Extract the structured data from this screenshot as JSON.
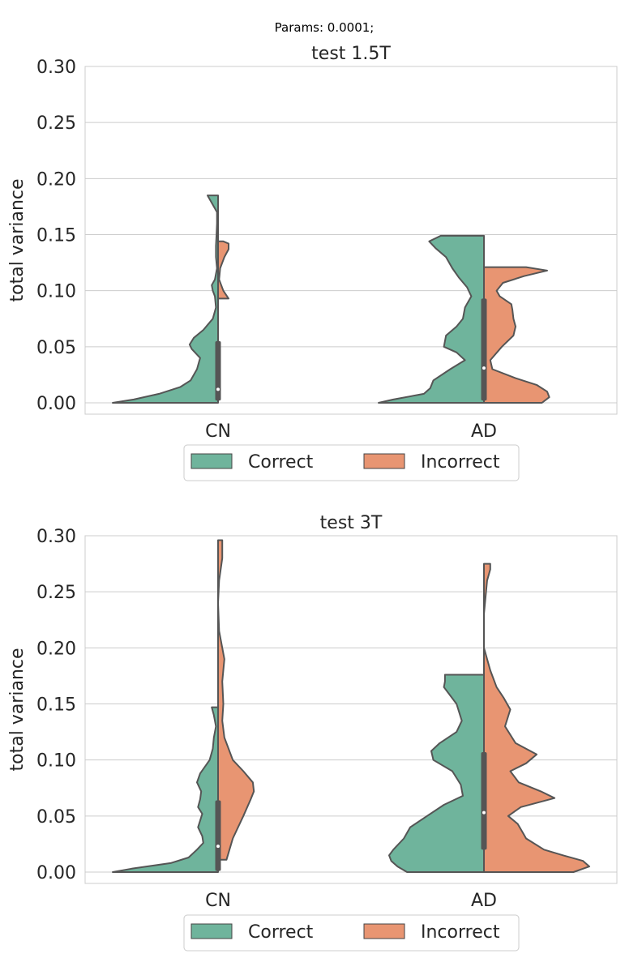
{
  "figure": {
    "suptitle": "Params: 0.0001;"
  },
  "colors": {
    "correct": "#6fb49c",
    "incorrect": "#e89572",
    "edge": "#555555",
    "grid": "#cccccc",
    "frame": "#cccccc"
  },
  "legend": {
    "items": [
      {
        "label": "Correct",
        "color": "#6fb49c"
      },
      {
        "label": "Incorrect",
        "color": "#e89572"
      }
    ]
  },
  "chart_data": [
    {
      "type": "violin",
      "title": "test 1.5T",
      "xlabel": "",
      "ylabel": "total variance",
      "categories": [
        "CN",
        "AD"
      ],
      "ylim": [
        -0.01,
        0.3
      ],
      "yticks": [
        "0.00",
        "0.05",
        "0.10",
        "0.15",
        "0.20",
        "0.25",
        "0.30"
      ],
      "grid": true,
      "legend_position": "bottom-center",
      "split": true,
      "groups": [
        {
          "category": "CN",
          "median": 0.012,
          "iqr": [
            0.002,
            0.055
          ],
          "correct": {
            "min": 0.0,
            "max": 0.185,
            "profile": [
              [
                0.0,
                1.0
              ],
              [
                0.003,
                0.8
              ],
              [
                0.008,
                0.56
              ],
              [
                0.014,
                0.36
              ],
              [
                0.02,
                0.26
              ],
              [
                0.03,
                0.2
              ],
              [
                0.04,
                0.17
              ],
              [
                0.048,
                0.25
              ],
              [
                0.052,
                0.27
              ],
              [
                0.058,
                0.23
              ],
              [
                0.065,
                0.14
              ],
              [
                0.075,
                0.05
              ],
              [
                0.085,
                0.02
              ],
              [
                0.095,
                0.03
              ],
              [
                0.1,
                0.05
              ],
              [
                0.105,
                0.06
              ],
              [
                0.11,
                0.03
              ],
              [
                0.12,
                0.01
              ],
              [
                0.13,
                0.02
              ],
              [
                0.14,
                0.02
              ],
              [
                0.15,
                0.015
              ],
              [
                0.16,
                0.01
              ],
              [
                0.17,
                0.01
              ],
              [
                0.185,
                0.1
              ]
            ]
          },
          "incorrect": {
            "min": 0.093,
            "max": 0.144,
            "profile": [
              [
                0.093,
                0.1
              ],
              [
                0.1,
                0.05
              ],
              [
                0.11,
                0.01
              ],
              [
                0.12,
                0.02
              ],
              [
                0.13,
                0.06
              ],
              [
                0.137,
                0.1
              ],
              [
                0.142,
                0.1
              ],
              [
                0.144,
                0.05
              ]
            ]
          }
        },
        {
          "category": "AD",
          "median": 0.031,
          "iqr": [
            0.002,
            0.093
          ],
          "correct": {
            "min": 0.0,
            "max": 0.149,
            "profile": [
              [
                0.0,
                1.0
              ],
              [
                0.003,
                0.86
              ],
              [
                0.008,
                0.57
              ],
              [
                0.013,
                0.51
              ],
              [
                0.02,
                0.48
              ],
              [
                0.03,
                0.32
              ],
              [
                0.038,
                0.18
              ],
              [
                0.045,
                0.26
              ],
              [
                0.05,
                0.38
              ],
              [
                0.06,
                0.36
              ],
              [
                0.068,
                0.26
              ],
              [
                0.075,
                0.2
              ],
              [
                0.085,
                0.18
              ],
              [
                0.095,
                0.12
              ],
              [
                0.103,
                0.16
              ],
              [
                0.112,
                0.24
              ],
              [
                0.12,
                0.3
              ],
              [
                0.13,
                0.36
              ],
              [
                0.138,
                0.46
              ],
              [
                0.144,
                0.52
              ],
              [
                0.149,
                0.41
              ]
            ]
          },
          "incorrect": {
            "min": 0.0,
            "max": 0.121,
            "profile": [
              [
                0.0,
                0.55
              ],
              [
                0.005,
                0.62
              ],
              [
                0.01,
                0.6
              ],
              [
                0.016,
                0.5
              ],
              [
                0.022,
                0.3
              ],
              [
                0.03,
                0.08
              ],
              [
                0.038,
                0.06
              ],
              [
                0.05,
                0.17
              ],
              [
                0.06,
                0.28
              ],
              [
                0.068,
                0.3
              ],
              [
                0.075,
                0.28
              ],
              [
                0.083,
                0.27
              ],
              [
                0.088,
                0.26
              ],
              [
                0.095,
                0.15
              ],
              [
                0.1,
                0.12
              ],
              [
                0.107,
                0.18
              ],
              [
                0.113,
                0.38
              ],
              [
                0.118,
                0.6
              ],
              [
                0.121,
                0.4
              ]
            ]
          }
        }
      ]
    },
    {
      "type": "violin",
      "title": "test 3T",
      "xlabel": "",
      "ylabel": "total variance",
      "categories": [
        "CN",
        "AD"
      ],
      "ylim": [
        -0.01,
        0.3
      ],
      "yticks": [
        "0.00",
        "0.05",
        "0.10",
        "0.15",
        "0.20",
        "0.25",
        "0.30"
      ],
      "grid": true,
      "legend_position": "bottom-center",
      "split": true,
      "groups": [
        {
          "category": "CN",
          "median": 0.023,
          "iqr": [
            0.001,
            0.064
          ],
          "correct": {
            "min": 0.0,
            "max": 0.147,
            "profile": [
              [
                0.0,
                1.0
              ],
              [
                0.003,
                0.82
              ],
              [
                0.008,
                0.45
              ],
              [
                0.013,
                0.28
              ],
              [
                0.02,
                0.2
              ],
              [
                0.026,
                0.14
              ],
              [
                0.032,
                0.15
              ],
              [
                0.04,
                0.19
              ],
              [
                0.046,
                0.17
              ],
              [
                0.052,
                0.15
              ],
              [
                0.058,
                0.19
              ],
              [
                0.065,
                0.17
              ],
              [
                0.072,
                0.16
              ],
              [
                0.08,
                0.2
              ],
              [
                0.088,
                0.17
              ],
              [
                0.1,
                0.08
              ],
              [
                0.11,
                0.05
              ],
              [
                0.12,
                0.04
              ],
              [
                0.13,
                0.02
              ],
              [
                0.14,
                0.04
              ],
              [
                0.147,
                0.06
              ]
            ]
          },
          "incorrect": {
            "min": 0.011,
            "max": 0.296,
            "profile": [
              [
                0.011,
                0.08
              ],
              [
                0.03,
                0.14
              ],
              [
                0.05,
                0.24
              ],
              [
                0.065,
                0.31
              ],
              [
                0.072,
                0.34
              ],
              [
                0.08,
                0.33
              ],
              [
                0.09,
                0.24
              ],
              [
                0.1,
                0.14
              ],
              [
                0.12,
                0.06
              ],
              [
                0.135,
                0.04
              ],
              [
                0.15,
                0.05
              ],
              [
                0.17,
                0.04
              ],
              [
                0.19,
                0.06
              ],
              [
                0.2,
                0.04
              ],
              [
                0.215,
                0.01
              ],
              [
                0.24,
                0.0
              ],
              [
                0.26,
                0.01
              ],
              [
                0.28,
                0.04
              ],
              [
                0.296,
                0.04
              ]
            ]
          }
        },
        {
          "category": "AD",
          "median": 0.053,
          "iqr": [
            0.02,
            0.107
          ],
          "correct": {
            "min": 0.0,
            "max": 0.176,
            "profile": [
              [
                0.0,
                0.73
              ],
              [
                0.005,
                0.82
              ],
              [
                0.01,
                0.88
              ],
              [
                0.015,
                0.9
              ],
              [
                0.02,
                0.86
              ],
              [
                0.03,
                0.76
              ],
              [
                0.04,
                0.7
              ],
              [
                0.05,
                0.54
              ],
              [
                0.06,
                0.38
              ],
              [
                0.068,
                0.2
              ],
              [
                0.078,
                0.22
              ],
              [
                0.09,
                0.3
              ],
              [
                0.1,
                0.48
              ],
              [
                0.108,
                0.5
              ],
              [
                0.115,
                0.42
              ],
              [
                0.125,
                0.26
              ],
              [
                0.135,
                0.21
              ],
              [
                0.15,
                0.26
              ],
              [
                0.165,
                0.38
              ],
              [
                0.17,
                0.37
              ],
              [
                0.176,
                0.37
              ]
            ]
          },
          "incorrect": {
            "min": 0.0,
            "max": 0.275,
            "profile": [
              [
                0.0,
                0.85
              ],
              [
                0.005,
                1.0
              ],
              [
                0.01,
                0.94
              ],
              [
                0.015,
                0.75
              ],
              [
                0.02,
                0.57
              ],
              [
                0.03,
                0.4
              ],
              [
                0.035,
                0.37
              ],
              [
                0.043,
                0.32
              ],
              [
                0.05,
                0.23
              ],
              [
                0.058,
                0.35
              ],
              [
                0.066,
                0.67
              ],
              [
                0.072,
                0.54
              ],
              [
                0.08,
                0.33
              ],
              [
                0.09,
                0.25
              ],
              [
                0.097,
                0.4
              ],
              [
                0.105,
                0.5
              ],
              [
                0.115,
                0.3
              ],
              [
                0.13,
                0.2
              ],
              [
                0.145,
                0.25
              ],
              [
                0.155,
                0.19
              ],
              [
                0.165,
                0.12
              ],
              [
                0.18,
                0.06
              ],
              [
                0.2,
                0.0
              ],
              [
                0.23,
                0.0
              ],
              [
                0.26,
                0.03
              ],
              [
                0.27,
                0.06
              ],
              [
                0.275,
                0.06
              ]
            ]
          }
        }
      ]
    }
  ]
}
